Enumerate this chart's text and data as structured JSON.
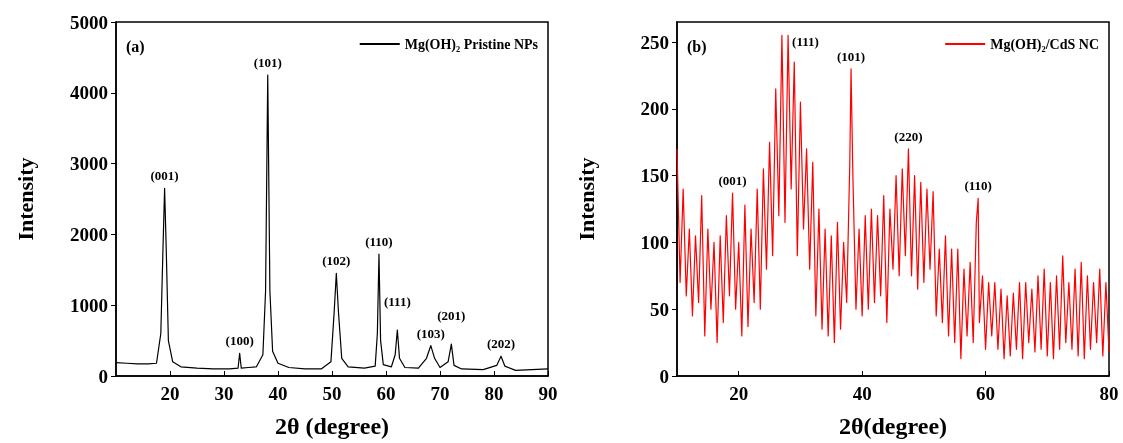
{
  "chart_data": [
    {
      "type": "line",
      "xlabel": "2θ (degree)",
      "ylabel": "Intensity",
      "xlim": [
        10,
        90
      ],
      "xticks": [
        20,
        30,
        40,
        50,
        60,
        70,
        80,
        90
      ],
      "ylim": [
        0,
        5000
      ],
      "yticks": [
        0,
        1000,
        2000,
        3000,
        4000,
        5000
      ],
      "grid": false,
      "legend": "top right",
      "marker": "none",
      "line_style": "solid",
      "annotations": [
        "(a)",
        {
          "text": "(001)",
          "x": 19,
          "y": 2650
        },
        {
          "text": "(100)",
          "x": 32.9,
          "y": 320
        },
        {
          "text": "(101)",
          "x": 38.1,
          "y": 4250
        },
        {
          "text": "(102)",
          "x": 50.8,
          "y": 1450
        },
        {
          "text": "(110)",
          "x": 58.7,
          "y": 1720
        },
        {
          "text": "(111)",
          "x": 62.1,
          "y": 650
        },
        {
          "text": "(103)",
          "x": 68.3,
          "y": 430
        },
        {
          "text": "(201)",
          "x": 72.1,
          "y": 450
        },
        {
          "text": "(202)",
          "x": 81.3,
          "y": 280
        }
      ],
      "series": [
        {
          "name": "Mg(OH)₂ Pristine NPs",
          "color": "#000000",
          "x": [
            10,
            12,
            14,
            16,
            17.5,
            18.3,
            18.7,
            19,
            19.3,
            19.7,
            20.5,
            22,
            25,
            28,
            31,
            32.6,
            32.9,
            33.2,
            34.5,
            36,
            37.2,
            37.7,
            38.1,
            38.5,
            39,
            40,
            42,
            45,
            48,
            49.8,
            50.4,
            50.8,
            51.2,
            51.8,
            53,
            56,
            58,
            58.4,
            58.7,
            59,
            59.5,
            61,
            61.7,
            62.1,
            62.5,
            63.5,
            66,
            67.5,
            68.3,
            69,
            70,
            71.5,
            72.1,
            72.6,
            74,
            78,
            80.5,
            81.3,
            82,
            84,
            87,
            90
          ],
          "values": [
            190,
            180,
            170,
            170,
            180,
            600,
            1800,
            2650,
            1800,
            500,
            200,
            130,
            110,
            100,
            100,
            110,
            320,
            110,
            120,
            130,
            300,
            1200,
            4250,
            1200,
            350,
            180,
            120,
            100,
            100,
            200,
            900,
            1450,
            900,
            250,
            130,
            110,
            140,
            600,
            1720,
            500,
            160,
            130,
            300,
            650,
            250,
            120,
            110,
            250,
            430,
            250,
            120,
            200,
            450,
            150,
            100,
            90,
            150,
            280,
            140,
            80,
            90,
            100
          ]
        }
      ]
    },
    {
      "type": "line",
      "xlabel": "2θ(degree)",
      "ylabel": "Intensity",
      "xlim": [
        10,
        80
      ],
      "xticks": [
        20,
        40,
        60,
        80
      ],
      "ylim": [
        0,
        265
      ],
      "yticks": [
        0,
        50,
        100,
        150,
        200,
        250
      ],
      "grid": false,
      "legend": "top right",
      "marker": "none",
      "line_style": "solid",
      "annotations": [
        "(b)",
        {
          "text": "(001)",
          "x": 19,
          "y": 137
        },
        {
          "text": "(111)",
          "x": 28,
          "y": 255
        },
        {
          "text": "(101)",
          "x": 38.2,
          "y": 230
        },
        {
          "text": "(220)",
          "x": 47.5,
          "y": 170
        },
        {
          "text": "(110)",
          "x": 58.8,
          "y": 133
        }
      ],
      "series": [
        {
          "name": "Mg(OH)₂/CdS NC",
          "color": "#ff0000",
          "x": [
            10,
            10.5,
            11,
            11.5,
            12,
            12.5,
            13,
            13.5,
            14,
            14.5,
            15,
            15.5,
            16,
            16.5,
            17,
            17.5,
            18,
            18.5,
            19,
            19.5,
            20,
            20.5,
            21,
            21.5,
            22,
            22.5,
            23,
            23.5,
            24,
            24.5,
            25,
            25.5,
            26,
            26.5,
            27,
            27.5,
            28,
            28.5,
            29,
            29.5,
            30,
            30.5,
            31,
            31.5,
            32,
            32.5,
            33,
            33.5,
            34,
            34.5,
            35,
            35.5,
            36,
            36.5,
            37,
            37.5,
            38,
            38.2,
            38.5,
            39,
            39.5,
            40,
            40.5,
            41,
            41.5,
            42,
            42.5,
            43,
            43.5,
            44,
            44.5,
            45,
            45.5,
            46,
            46.5,
            47,
            47.5,
            48,
            48.5,
            49,
            49.5,
            50,
            50.5,
            51,
            51.5,
            52,
            52.5,
            53,
            53.5,
            54,
            54.5,
            55,
            55.5,
            56,
            56.5,
            57,
            57.5,
            58,
            58.5,
            58.8,
            59,
            59.5,
            60,
            60.5,
            61,
            61.5,
            62,
            62.5,
            63,
            63.5,
            64,
            64.5,
            65,
            65.5,
            66,
            66.5,
            67,
            67.5,
            68,
            68.5,
            69,
            69.5,
            70,
            70.5,
            71,
            71.5,
            72,
            72.5,
            73,
            73.5,
            74,
            74.5,
            75,
            75.5,
            76,
            76.5,
            77,
            77.5,
            78,
            78.5,
            79,
            79.5,
            80
          ],
          "values": [
            170,
            70,
            140,
            60,
            110,
            45,
            105,
            55,
            135,
            30,
            110,
            50,
            100,
            25,
            105,
            40,
            120,
            60,
            137,
            50,
            100,
            30,
            128,
            37,
            110,
            55,
            140,
            50,
            155,
            80,
            175,
            90,
            215,
            120,
            255,
            115,
            255,
            140,
            235,
            90,
            205,
            110,
            170,
            80,
            160,
            45,
            125,
            35,
            110,
            30,
            105,
            25,
            115,
            35,
            100,
            55,
            160,
            230,
            150,
            50,
            110,
            45,
            120,
            50,
            125,
            55,
            120,
            60,
            135,
            40,
            125,
            80,
            150,
            75,
            155,
            90,
            170,
            75,
            150,
            65,
            145,
            70,
            140,
            80,
            138,
            45,
            95,
            40,
            105,
            30,
            95,
            25,
            95,
            13,
            80,
            30,
            85,
            25,
            115,
            133,
            40,
            75,
            20,
            70,
            30,
            70,
            20,
            65,
            13,
            60,
            15,
            62,
            20,
            70,
            13,
            70,
            25,
            65,
            18,
            75,
            20,
            80,
            15,
            70,
            13,
            75,
            20,
            90,
            25,
            70,
            20,
            80,
            15,
            85,
            13,
            75,
            20,
            70,
            25,
            80,
            15,
            70,
            18
          ]
        }
      ]
    }
  ]
}
